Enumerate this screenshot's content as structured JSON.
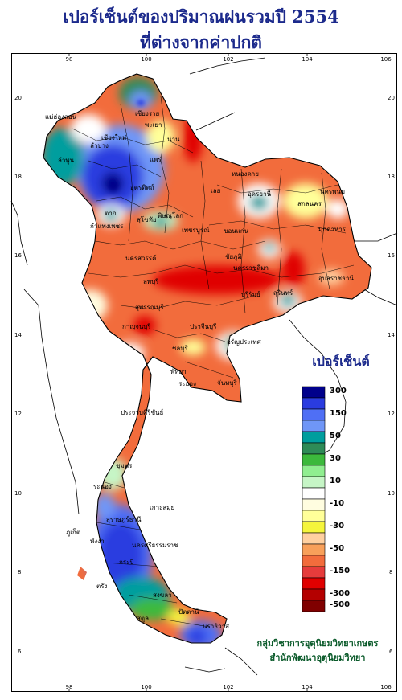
{
  "title": {
    "line1": "เปอร์เซ็นต์ของปริมาณฝนรวมปี  2554",
    "line2": "ที่ต่างจากค่าปกติ"
  },
  "axes": {
    "top_ticks": [
      "98",
      "100",
      "102",
      "104",
      "106"
    ],
    "bottom_ticks": [
      "98",
      "100",
      "102",
      "104",
      "106"
    ],
    "left_ticks": [
      "20",
      "18",
      "16",
      "14",
      "12",
      "10",
      "8",
      "6"
    ],
    "right_ticks": [
      "20",
      "18",
      "16",
      "14",
      "12",
      "10",
      "8",
      "6"
    ]
  },
  "legend": {
    "title": "เปอร์เซ็นต์",
    "items": [
      {
        "label": "300",
        "color": "#00008b"
      },
      {
        "label": "",
        "color": "#2a3ce0"
      },
      {
        "label": "150",
        "color": "#4f6ff5"
      },
      {
        "label": "",
        "color": "#6f96f7"
      },
      {
        "label": "50",
        "color": "#009e9e"
      },
      {
        "label": "",
        "color": "#2e8b57"
      },
      {
        "label": "30",
        "color": "#3cb93c"
      },
      {
        "label": "",
        "color": "#90ee90"
      },
      {
        "label": "10",
        "color": "#c6f5c6"
      },
      {
        "label": "",
        "color": "#ffffff"
      },
      {
        "label": "-10",
        "color": "#fffde0"
      },
      {
        "label": "",
        "color": "#ffff99"
      },
      {
        "label": "-30",
        "color": "#f5f53c"
      },
      {
        "label": "",
        "color": "#ffd0a0"
      },
      {
        "label": "-50",
        "color": "#f8a05a"
      },
      {
        "label": "",
        "color": "#f26c3c"
      },
      {
        "label": "-150",
        "color": "#e63c3c"
      },
      {
        "label": "",
        "color": "#e00000"
      },
      {
        "label": "-300",
        "color": "#b40000"
      },
      {
        "label": "-500",
        "color": "#800000"
      }
    ]
  },
  "provinces": [
    "เชียงราย",
    "แม่ฮ่องสอน",
    "น่าน",
    "พะเยา",
    "เชียงใหม่",
    "ลำปาง",
    "แพร่",
    "ลำพูน",
    "อุตรดิตถ์",
    "หนองคาย",
    "นครพนม",
    "อุดรธานี",
    "สกลนคร",
    "มุกดาหาร",
    "เลย",
    "ตาก",
    "สุโขทัย",
    "พิษณุโลก",
    "กำแพงเพชร",
    "เพชรบูรณ์",
    "ขอนแก่น",
    "นครสวรรค์",
    "ชัยภูมิ",
    "อุบลราชธานี",
    "ลพบุรี",
    "นครราชสีมา",
    "สุรินทร์",
    "สุพรรณบุรี",
    "บุรีรัมย์",
    "กาญจนบุรี",
    "ปราจีนบุรี",
    "อรัญประเทศ",
    "ชลบุรี",
    "พัทยา",
    "ระยอง",
    "จันทบุรี",
    "ประจวบคีรีขันธ์",
    "ชุมพร",
    "ระนอง",
    "เกาะสมุย",
    "สุราษฎร์ธานี",
    "ภูเก็ต",
    "พังงา",
    "นครศรีธรรมราช",
    "กระบี่",
    "ตรัง",
    "สงขลา",
    "ปัตตานี",
    "นราธิวาส",
    "สตูล"
  ],
  "credit": {
    "line1": "กลุ่มวิชาการอุตุนิยมวิทยาเกษตร",
    "line2": "สำนักพัฒนาอุตุนิยมวิทยา"
  },
  "colors": {
    "title": "#1c2a8c",
    "credit": "#0a5a2a",
    "sea": "#ffffff",
    "land_default": "#f26c3c"
  }
}
